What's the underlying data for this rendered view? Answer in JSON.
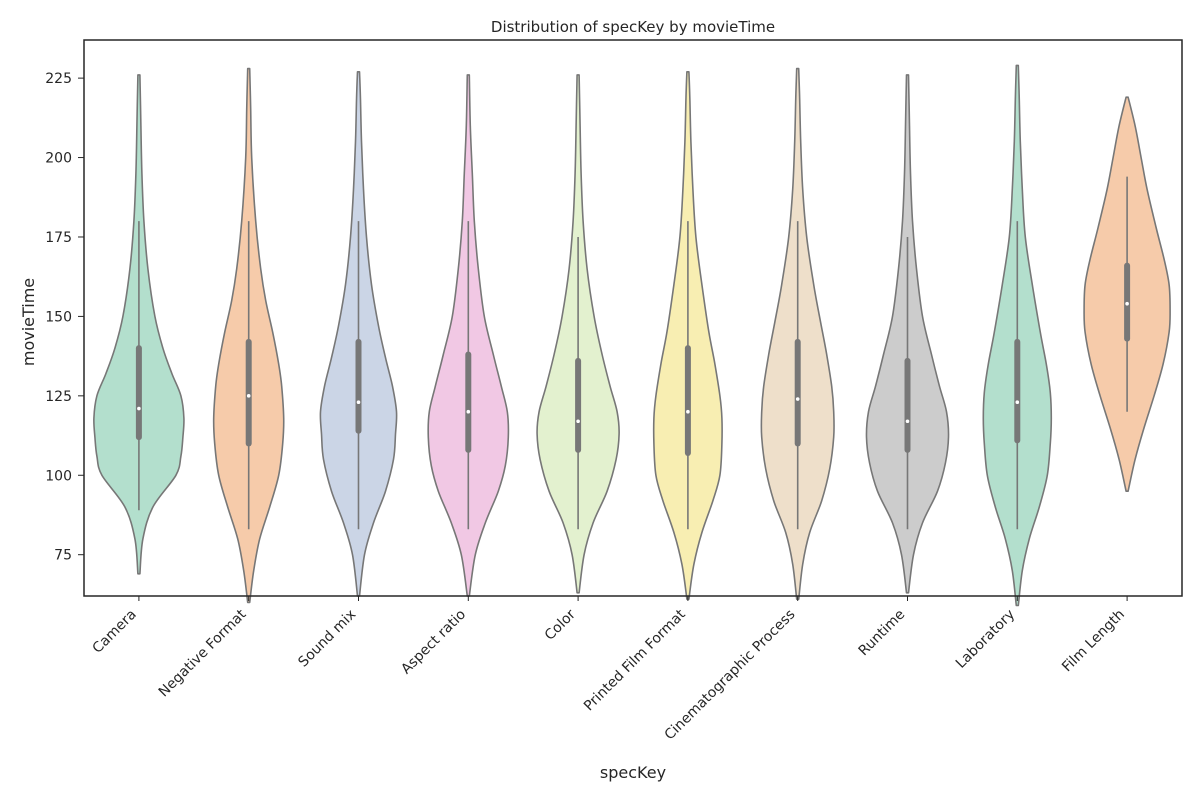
{
  "chart_data": {
    "type": "violin",
    "title": "Distribution of specKey by movieTime",
    "xlabel": "specKey",
    "ylabel": "movieTime",
    "ylim": [
      62,
      237
    ],
    "yticks": [
      75,
      100,
      125,
      150,
      175,
      200,
      225
    ],
    "grid": false,
    "legend": "none",
    "categories": [
      "Camera",
      "Negative Format",
      "Sound mix",
      "Aspect ratio",
      "Color",
      "Printed Film Format",
      "Cinematographic Process",
      "Runtime",
      "Laboratory",
      "Film Length"
    ],
    "colors": [
      "#b3dfcd",
      "#f6cbaa",
      "#cbd5e6",
      "#f1c8e4",
      "#e3f1cf",
      "#f8eeb2",
      "#eedfca",
      "#cccccc",
      "#b3dfcd",
      "#f6cbaa"
    ],
    "outline_color": "#777777",
    "series": [
      {
        "min": 69,
        "max": 226,
        "q1": 112,
        "median": 121,
        "q3": 140,
        "whisker_low": 89,
        "whisker_high": 180,
        "profile": [
          [
            69,
            1
          ],
          [
            80,
            4
          ],
          [
            90,
            14
          ],
          [
            100,
            37
          ],
          [
            106,
            42
          ],
          [
            112,
            44
          ],
          [
            118,
            45
          ],
          [
            125,
            42
          ],
          [
            132,
            33
          ],
          [
            140,
            24
          ],
          [
            150,
            16
          ],
          [
            165,
            9
          ],
          [
            180,
            5
          ],
          [
            195,
            3
          ],
          [
            210,
            2
          ],
          [
            226,
            1
          ]
        ]
      },
      {
        "min": 60,
        "max": 228,
        "q1": 110,
        "median": 125,
        "q3": 142,
        "whisker_low": 83,
        "whisker_high": 180,
        "profile": [
          [
            60,
            1
          ],
          [
            70,
            5
          ],
          [
            80,
            11
          ],
          [
            90,
            21
          ],
          [
            100,
            30
          ],
          [
            110,
            34
          ],
          [
            118,
            35
          ],
          [
            128,
            33
          ],
          [
            135,
            30
          ],
          [
            145,
            24
          ],
          [
            155,
            17
          ],
          [
            165,
            12
          ],
          [
            180,
            7
          ],
          [
            200,
            3
          ],
          [
            215,
            2
          ],
          [
            228,
            1
          ]
        ]
      },
      {
        "min": 62,
        "max": 227,
        "q1": 114,
        "median": 123,
        "q3": 142,
        "whisker_low": 83,
        "whisker_high": 180,
        "profile": [
          [
            62,
            1
          ],
          [
            75,
            6
          ],
          [
            85,
            15
          ],
          [
            95,
            27
          ],
          [
            105,
            35
          ],
          [
            113,
            37
          ],
          [
            120,
            38
          ],
          [
            128,
            34
          ],
          [
            137,
            27
          ],
          [
            147,
            20
          ],
          [
            160,
            13
          ],
          [
            175,
            8
          ],
          [
            190,
            5
          ],
          [
            205,
            3
          ],
          [
            218,
            2
          ],
          [
            227,
            1
          ]
        ]
      },
      {
        "min": 62,
        "max": 226,
        "q1": 108,
        "median": 120,
        "q3": 138,
        "whisker_low": 83,
        "whisker_high": 180,
        "profile": [
          [
            62,
            1
          ],
          [
            75,
            7
          ],
          [
            85,
            17
          ],
          [
            95,
            30
          ],
          [
            103,
            37
          ],
          [
            112,
            40
          ],
          [
            120,
            39
          ],
          [
            128,
            33
          ],
          [
            138,
            25
          ],
          [
            150,
            16
          ],
          [
            165,
            10
          ],
          [
            180,
            6
          ],
          [
            195,
            4
          ],
          [
            210,
            2
          ],
          [
            226,
            1
          ]
        ]
      },
      {
        "min": 63,
        "max": 226,
        "q1": 108,
        "median": 117,
        "q3": 136,
        "whisker_low": 83,
        "whisker_high": 175,
        "profile": [
          [
            63,
            1
          ],
          [
            75,
            6
          ],
          [
            85,
            15
          ],
          [
            95,
            29
          ],
          [
            105,
            38
          ],
          [
            113,
            41
          ],
          [
            120,
            39
          ],
          [
            128,
            32
          ],
          [
            138,
            24
          ],
          [
            150,
            16
          ],
          [
            165,
            9
          ],
          [
            180,
            5
          ],
          [
            195,
            3
          ],
          [
            210,
            2
          ],
          [
            226,
            1
          ]
        ]
      },
      {
        "min": 61,
        "max": 227,
        "q1": 107,
        "median": 120,
        "q3": 140,
        "whisker_low": 83,
        "whisker_high": 180,
        "profile": [
          [
            61,
            1
          ],
          [
            72,
            6
          ],
          [
            82,
            14
          ],
          [
            92,
            25
          ],
          [
            100,
            32
          ],
          [
            110,
            34
          ],
          [
            118,
            34
          ],
          [
            125,
            32
          ],
          [
            135,
            27
          ],
          [
            145,
            21
          ],
          [
            160,
            14
          ],
          [
            175,
            8
          ],
          [
            190,
            5
          ],
          [
            205,
            3
          ],
          [
            218,
            2
          ],
          [
            227,
            1
          ]
        ]
      },
      {
        "min": 61,
        "max": 228,
        "q1": 110,
        "median": 124,
        "q3": 142,
        "whisker_low": 83,
        "whisker_high": 180,
        "profile": [
          [
            61,
            1
          ],
          [
            72,
            5
          ],
          [
            82,
            12
          ],
          [
            92,
            24
          ],
          [
            102,
            32
          ],
          [
            112,
            36
          ],
          [
            120,
            36
          ],
          [
            128,
            34
          ],
          [
            138,
            29
          ],
          [
            148,
            23
          ],
          [
            160,
            16
          ],
          [
            175,
            9
          ],
          [
            190,
            5
          ],
          [
            205,
            3
          ],
          [
            218,
            2
          ],
          [
            228,
            1
          ]
        ]
      },
      {
        "min": 63,
        "max": 226,
        "q1": 108,
        "median": 117,
        "q3": 136,
        "whisker_low": 83,
        "whisker_high": 175,
        "profile": [
          [
            63,
            1
          ],
          [
            75,
            6
          ],
          [
            85,
            15
          ],
          [
            95,
            30
          ],
          [
            104,
            38
          ],
          [
            112,
            41
          ],
          [
            120,
            39
          ],
          [
            128,
            32
          ],
          [
            138,
            24
          ],
          [
            150,
            15
          ],
          [
            165,
            9
          ],
          [
            180,
            5
          ],
          [
            195,
            3
          ],
          [
            210,
            2
          ],
          [
            226,
            1
          ]
        ]
      },
      {
        "min": 59,
        "max": 229,
        "q1": 111,
        "median": 123,
        "q3": 142,
        "whisker_low": 83,
        "whisker_high": 180,
        "profile": [
          [
            59,
            1
          ],
          [
            70,
            5
          ],
          [
            80,
            12
          ],
          [
            90,
            22
          ],
          [
            100,
            30
          ],
          [
            110,
            33
          ],
          [
            118,
            34
          ],
          [
            126,
            33
          ],
          [
            135,
            29
          ],
          [
            145,
            23
          ],
          [
            160,
            15
          ],
          [
            175,
            8
          ],
          [
            190,
            5
          ],
          [
            205,
            3
          ],
          [
            218,
            2
          ],
          [
            229,
            1
          ]
        ]
      },
      {
        "min": 95,
        "max": 219,
        "q1": 143,
        "median": 154,
        "q3": 166,
        "whisker_low": 120,
        "whisker_high": 194,
        "profile": [
          [
            95,
            1
          ],
          [
            105,
            8
          ],
          [
            115,
            17
          ],
          [
            125,
            27
          ],
          [
            135,
            36
          ],
          [
            145,
            42
          ],
          [
            152,
            43
          ],
          [
            160,
            42
          ],
          [
            168,
            37
          ],
          [
            178,
            29
          ],
          [
            190,
            20
          ],
          [
            200,
            14
          ],
          [
            210,
            8
          ],
          [
            219,
            1
          ]
        ]
      }
    ]
  }
}
